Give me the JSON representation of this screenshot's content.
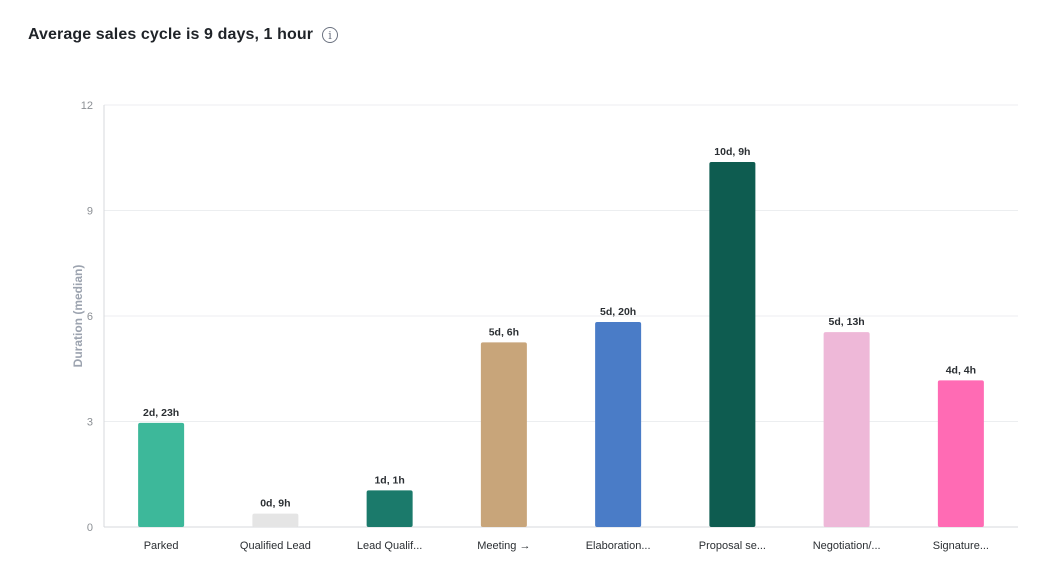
{
  "header": {
    "title": "Average sales cycle is 9 days, 1 hour",
    "info_icon": "info-icon"
  },
  "chart_data": {
    "type": "bar",
    "title": "Average sales cycle is 9 days, 1 hour",
    "xlabel": "",
    "ylabel": "Duration (median)",
    "ylim": [
      0,
      12
    ],
    "yticks": [
      0,
      3,
      6,
      9,
      12
    ],
    "grid": true,
    "categories": [
      "Parked",
      "Qualified Lead",
      "Lead Qualif...",
      "Meeting →",
      "Elaboration...",
      "Proposal se...",
      "Negotiation/...",
      "Signature..."
    ],
    "values": [
      2.96,
      0.38,
      1.04,
      5.25,
      5.83,
      10.38,
      5.54,
      4.17
    ],
    "data_labels": [
      "2d, 23h",
      "0d, 9h",
      "1d, 1h",
      "5d, 6h",
      "5d, 20h",
      "10d, 9h",
      "5d, 13h",
      "4d, 4h"
    ],
    "colors": [
      "#3db89a",
      "#e5e5e5",
      "#1b7a6b",
      "#c8a57a",
      "#4a7cc7",
      "#0e5c50",
      "#eeb8d8",
      "#ff6bb4"
    ]
  }
}
